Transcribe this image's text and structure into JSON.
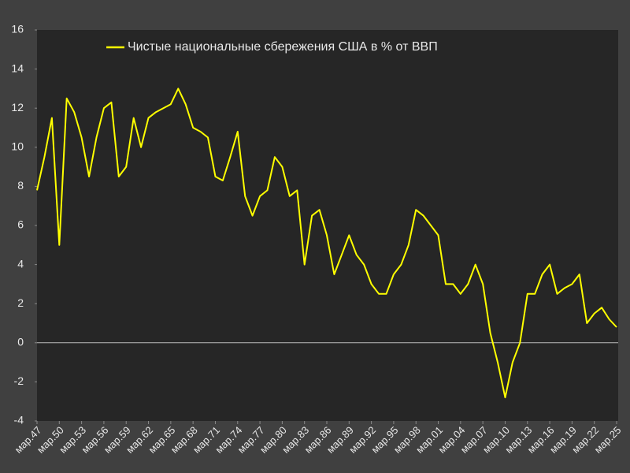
{
  "chart_data": {
    "type": "line",
    "categories": [
      "мар.47",
      null,
      null,
      "мар.50",
      null,
      null,
      "мар.53",
      null,
      null,
      "мар.56",
      null,
      null,
      "мар.59",
      null,
      null,
      "мар.62",
      null,
      null,
      "мар.65",
      null,
      null,
      "мар.68",
      null,
      null,
      "мар.71",
      null,
      null,
      "мар.74",
      null,
      null,
      "мар.77",
      null,
      null,
      "мар.80",
      null,
      null,
      "мар.83",
      null,
      null,
      "мар.86",
      null,
      null,
      "мар.89",
      null,
      null,
      "мар.92",
      null,
      null,
      "мар.95",
      null,
      null,
      "мар.98",
      null,
      null,
      "мар.01",
      null,
      null,
      "мар.04",
      null,
      null,
      "мар.07",
      null,
      null,
      "мар.10",
      null,
      null,
      "мар.13",
      null,
      null,
      "мар.16",
      null,
      null,
      "мар.19",
      null,
      null,
      "мар.22",
      null,
      null,
      "мар.25"
    ],
    "series": [
      {
        "name": "Чистые национальные сбережения США в % от ВВП",
        "color": "#ffff00",
        "values": [
          7.8,
          9.5,
          11.5,
          5.0,
          12.5,
          11.8,
          10.5,
          8.5,
          10.5,
          12.0,
          12.3,
          8.5,
          9.0,
          11.5,
          10.0,
          11.5,
          11.8,
          12.0,
          12.2,
          13.0,
          12.2,
          11.0,
          10.8,
          10.5,
          8.5,
          8.3,
          9.5,
          10.8,
          7.5,
          6.5,
          7.5,
          7.8,
          9.5,
          9.0,
          7.5,
          7.8,
          4.0,
          6.5,
          6.8,
          5.5,
          3.5,
          4.5,
          5.5,
          4.5,
          4.0,
          3.0,
          2.5,
          2.5,
          3.5,
          4.0,
          5.0,
          6.8,
          6.5,
          6.0,
          5.5,
          3.0,
          3.0,
          2.5,
          3.0,
          4.0,
          3.0,
          0.5,
          -1.0,
          -2.8,
          -1.0,
          0.0,
          2.5,
          2.5,
          3.5,
          4.0,
          2.5,
          2.8,
          3.0,
          3.5,
          1.0,
          1.5,
          1.8,
          1.2,
          0.8
        ]
      }
    ],
    "ylim": [
      -4,
      16
    ],
    "yticks": [
      -4,
      -2,
      0,
      2,
      4,
      6,
      8,
      10,
      12,
      14,
      16
    ]
  }
}
